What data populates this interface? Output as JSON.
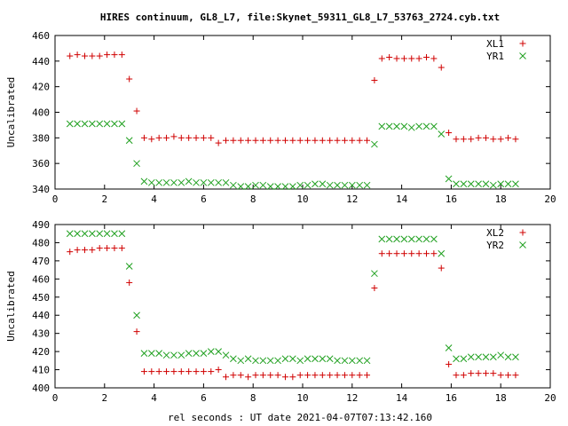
{
  "title": "HIRES continuum, GL8_L7, file:Skynet_59311_GL8_L7_53763_2724.cyb.txt",
  "xlabel": "rel seconds : UT date 2021-04-07T07:13:42.160",
  "colors": {
    "red": "#d00000",
    "green": "#20a020"
  },
  "chart_data": [
    {
      "type": "scatter",
      "ylabel": "Uncalibrated",
      "xlim": [
        0,
        20
      ],
      "ylim": [
        340,
        460
      ],
      "xticks": [
        0,
        2,
        4,
        6,
        8,
        10,
        12,
        14,
        16,
        18,
        20
      ],
      "yticks": [
        340,
        360,
        380,
        400,
        420,
        440,
        460
      ],
      "legend": "top-right",
      "series": [
        {
          "name": "XL1",
          "marker": "plus",
          "x": [
            0.6,
            0.9,
            1.2,
            1.5,
            1.8,
            2.1,
            2.4,
            2.7,
            3.0,
            3.3,
            3.6,
            3.9,
            4.2,
            4.5,
            4.8,
            5.1,
            5.4,
            5.7,
            6.0,
            6.3,
            6.6,
            6.9,
            7.2,
            7.5,
            7.8,
            8.1,
            8.4,
            8.7,
            9.0,
            9.3,
            9.6,
            9.9,
            10.2,
            10.5,
            10.8,
            11.1,
            11.4,
            11.7,
            12.0,
            12.3,
            12.6,
            12.9,
            13.2,
            13.5,
            13.8,
            14.1,
            14.4,
            14.7,
            15.0,
            15.3,
            15.6,
            15.9,
            16.2,
            16.5,
            16.8,
            17.1,
            17.4,
            17.7,
            18.0,
            18.3,
            18.6
          ],
          "y": [
            444,
            445,
            444,
            444,
            444,
            445,
            445,
            445,
            426,
            401,
            380,
            379,
            380,
            380,
            381,
            380,
            380,
            380,
            380,
            380,
            376,
            378,
            378,
            378,
            378,
            378,
            378,
            378,
            378,
            378,
            378,
            378,
            378,
            378,
            378,
            378,
            378,
            378,
            378,
            378,
            378,
            425,
            442,
            443,
            442,
            442,
            442,
            442,
            443,
            442,
            435,
            384,
            379,
            379,
            379,
            380,
            380,
            379,
            379,
            380,
            379
          ]
        },
        {
          "name": "YR1",
          "marker": "cross",
          "x": [
            0.6,
            0.9,
            1.2,
            1.5,
            1.8,
            2.1,
            2.4,
            2.7,
            3.0,
            3.3,
            3.6,
            3.9,
            4.2,
            4.5,
            4.8,
            5.1,
            5.4,
            5.7,
            6.0,
            6.3,
            6.6,
            6.9,
            7.2,
            7.5,
            7.8,
            8.1,
            8.4,
            8.7,
            9.0,
            9.3,
            9.6,
            9.9,
            10.2,
            10.5,
            10.8,
            11.1,
            11.4,
            11.7,
            12.0,
            12.3,
            12.6,
            12.9,
            13.2,
            13.5,
            13.8,
            14.1,
            14.4,
            14.7,
            15.0,
            15.3,
            15.6,
            15.9,
            16.2,
            16.5,
            16.8,
            17.1,
            17.4,
            17.7,
            18.0,
            18.3,
            18.6
          ],
          "y": [
            391,
            391,
            391,
            391,
            391,
            391,
            391,
            391,
            378,
            360,
            346,
            345,
            345,
            345,
            345,
            345,
            346,
            345,
            345,
            345,
            345,
            345,
            343,
            342,
            342,
            343,
            343,
            342,
            342,
            342,
            342,
            343,
            343,
            344,
            344,
            343,
            343,
            343,
            343,
            343,
            343,
            375,
            389,
            389,
            389,
            389,
            388,
            389,
            389,
            389,
            383,
            348,
            344,
            344,
            344,
            344,
            344,
            343,
            344,
            344,
            344
          ]
        }
      ]
    },
    {
      "type": "scatter",
      "ylabel": "Uncalibrated",
      "xlim": [
        0,
        20
      ],
      "ylim": [
        400,
        490
      ],
      "xticks": [
        0,
        2,
        4,
        6,
        8,
        10,
        12,
        14,
        16,
        18,
        20
      ],
      "yticks": [
        400,
        410,
        420,
        430,
        440,
        450,
        460,
        470,
        480,
        490
      ],
      "legend": "top-right",
      "series": [
        {
          "name": "XL2",
          "marker": "plus",
          "x": [
            0.6,
            0.9,
            1.2,
            1.5,
            1.8,
            2.1,
            2.4,
            2.7,
            3.0,
            3.3,
            3.6,
            3.9,
            4.2,
            4.5,
            4.8,
            5.1,
            5.4,
            5.7,
            6.0,
            6.3,
            6.6,
            6.9,
            7.2,
            7.5,
            7.8,
            8.1,
            8.4,
            8.7,
            9.0,
            9.3,
            9.6,
            9.9,
            10.2,
            10.5,
            10.8,
            11.1,
            11.4,
            11.7,
            12.0,
            12.3,
            12.6,
            12.9,
            13.2,
            13.5,
            13.8,
            14.1,
            14.4,
            14.7,
            15.0,
            15.3,
            15.6,
            15.9,
            16.2,
            16.5,
            16.8,
            17.1,
            17.4,
            17.7,
            18.0,
            18.3,
            18.6
          ],
          "y": [
            475,
            476,
            476,
            476,
            477,
            477,
            477,
            477,
            458,
            431,
            409,
            409,
            409,
            409,
            409,
            409,
            409,
            409,
            409,
            409,
            410,
            406,
            407,
            407,
            406,
            407,
            407,
            407,
            407,
            406,
            406,
            407,
            407,
            407,
            407,
            407,
            407,
            407,
            407,
            407,
            407,
            455,
            474,
            474,
            474,
            474,
            474,
            474,
            474,
            474,
            466,
            413,
            407,
            407,
            408,
            408,
            408,
            408,
            407,
            407,
            407
          ]
        },
        {
          "name": "YR2",
          "marker": "cross",
          "x": [
            0.6,
            0.9,
            1.2,
            1.5,
            1.8,
            2.1,
            2.4,
            2.7,
            3.0,
            3.3,
            3.6,
            3.9,
            4.2,
            4.5,
            4.8,
            5.1,
            5.4,
            5.7,
            6.0,
            6.3,
            6.6,
            6.9,
            7.2,
            7.5,
            7.8,
            8.1,
            8.4,
            8.7,
            9.0,
            9.3,
            9.6,
            9.9,
            10.2,
            10.5,
            10.8,
            11.1,
            11.4,
            11.7,
            12.0,
            12.3,
            12.6,
            12.9,
            13.2,
            13.5,
            13.8,
            14.1,
            14.4,
            14.7,
            15.0,
            15.3,
            15.6,
            15.9,
            16.2,
            16.5,
            16.8,
            17.1,
            17.4,
            17.7,
            18.0,
            18.3,
            18.6
          ],
          "y": [
            485,
            485,
            485,
            485,
            485,
            485,
            485,
            485,
            467,
            440,
            419,
            419,
            419,
            418,
            418,
            418,
            419,
            419,
            419,
            420,
            420,
            418,
            416,
            415,
            416,
            415,
            415,
            415,
            415,
            416,
            416,
            415,
            416,
            416,
            416,
            416,
            415,
            415,
            415,
            415,
            415,
            463,
            482,
            482,
            482,
            482,
            482,
            482,
            482,
            482,
            474,
            422,
            416,
            416,
            417,
            417,
            417,
            417,
            418,
            417,
            417
          ]
        }
      ]
    }
  ]
}
